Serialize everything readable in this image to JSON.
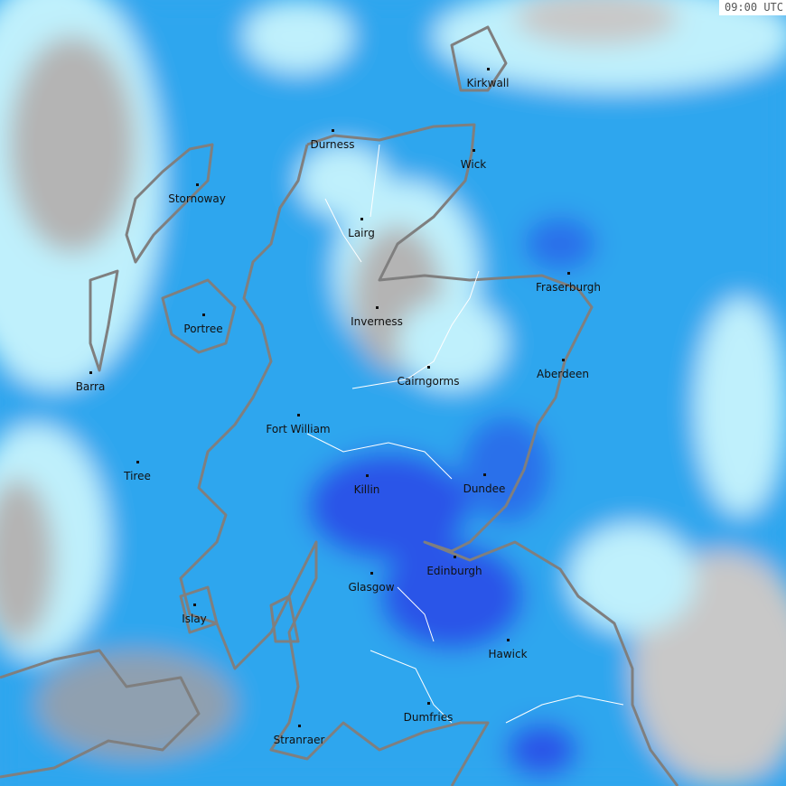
{
  "timestamp": "09:00 UTC",
  "colors": {
    "base_rain": "#2fa6ee",
    "light_rain": "#bff0fc",
    "heavy_rain": "#2c54e8",
    "no_rain_cloud": "#b4b4b4",
    "coastline": "#7f7f7f",
    "river": "#ffffff"
  },
  "cities": [
    "Kirkwall",
    "Durness",
    "Wick",
    "Stornoway",
    "Lairg",
    "Fraserburgh",
    "Portree",
    "Inverness",
    "Aberdeen",
    "Barra",
    "Cairngorms",
    "Fort William",
    "Tiree",
    "Killin",
    "Dundee",
    "Edinburgh",
    "Glasgow",
    "Islay",
    "Hawick",
    "Dumfries",
    "Stranraer"
  ]
}
